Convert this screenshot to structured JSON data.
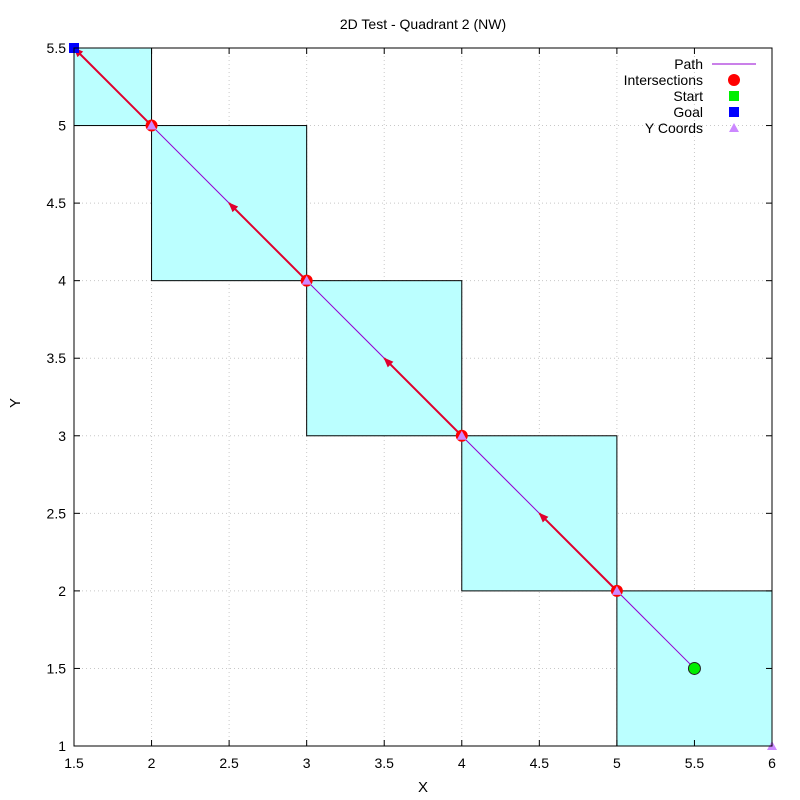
{
  "chart_data": {
    "type": "line",
    "title": "2D Test - Quadrant 2 (NW)",
    "xlabel": "X",
    "ylabel": "Y",
    "xlim": [
      1.5,
      6
    ],
    "ylim": [
      1,
      5.5
    ],
    "xticks": [
      "1.5",
      "2",
      "2.5",
      "3",
      "3.5",
      "4",
      "4.5",
      "5",
      "5.5",
      "6"
    ],
    "yticks": [
      "1",
      "1.5",
      "2",
      "2.5",
      "3",
      "3.5",
      "4",
      "4.5",
      "5",
      "5.5"
    ],
    "grid": true,
    "legend_position": "top-right",
    "cells": [
      {
        "x0": 1.5,
        "x1": 2,
        "y0": 5,
        "y1": 5.5
      },
      {
        "x0": 2,
        "x1": 3,
        "y0": 4,
        "y1": 5
      },
      {
        "x0": 3,
        "x1": 4,
        "y0": 3,
        "y1": 4
      },
      {
        "x0": 4,
        "x1": 5,
        "y0": 2,
        "y1": 3
      },
      {
        "x0": 5,
        "x1": 6,
        "y0": 1,
        "y1": 2
      }
    ],
    "series": [
      {
        "name": "Path",
        "type": "line",
        "points": [
          [
            5.5,
            1.5
          ],
          [
            1.5,
            5.5
          ]
        ]
      },
      {
        "name": "Intersections",
        "type": "scatter",
        "points": [
          [
            5,
            2
          ],
          [
            4,
            3
          ],
          [
            3,
            4
          ],
          [
            2,
            5
          ]
        ]
      },
      {
        "name": "Start",
        "type": "scatter",
        "points": [
          [
            5.5,
            1.5
          ]
        ]
      },
      {
        "name": "Goal",
        "type": "scatter",
        "points": [
          [
            1.5,
            5.5
          ]
        ]
      },
      {
        "name": "Y Coords",
        "type": "scatter",
        "points": [
          [
            6,
            1
          ],
          [
            5,
            2
          ],
          [
            4,
            3
          ],
          [
            3,
            4
          ],
          [
            2,
            5
          ]
        ]
      }
    ],
    "arrows": [
      {
        "from": [
          5,
          2
        ],
        "to": [
          4.5,
          2.5
        ]
      },
      {
        "from": [
          4,
          3
        ],
        "to": [
          3.5,
          3.5
        ]
      },
      {
        "from": [
          3,
          4
        ],
        "to": [
          2.5,
          4.5
        ]
      },
      {
        "from": [
          2,
          5
        ],
        "to": [
          1.5,
          5.5
        ]
      }
    ],
    "legend": [
      {
        "label": "Path",
        "marker": "line"
      },
      {
        "label": "Intersections",
        "marker": "circle"
      },
      {
        "label": "Start",
        "marker": "square"
      },
      {
        "label": "Goal",
        "marker": "square"
      },
      {
        "label": "Y Coords",
        "marker": "triangle"
      }
    ],
    "colors": {
      "cell_fill": "#bbffff",
      "path": "#9400d3",
      "arrow": "#e0002e",
      "intersection": "#ff0000",
      "start": "#00ee00",
      "goal": "#0000ff",
      "ycoords": "#cc88ff"
    }
  }
}
